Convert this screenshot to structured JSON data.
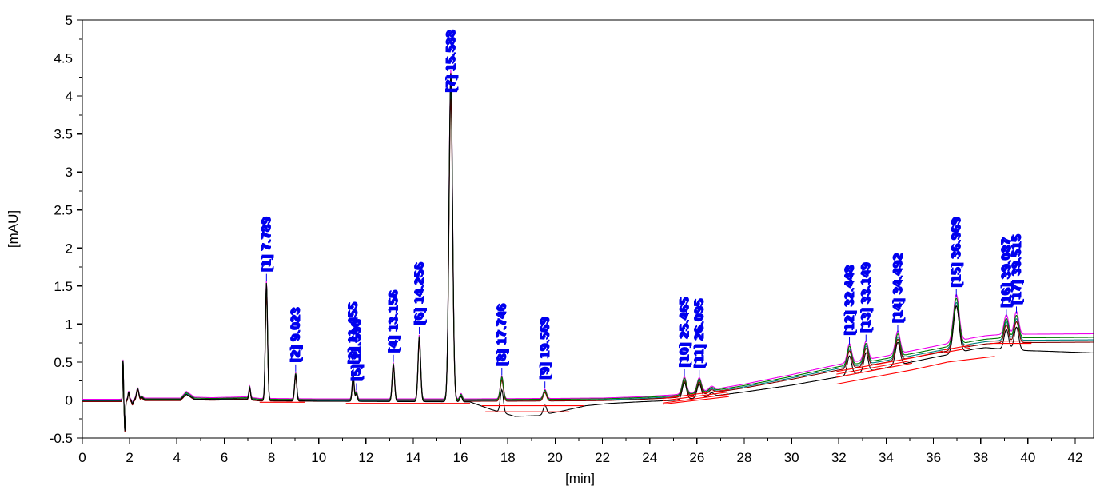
{
  "page": {
    "background": "#ffffff"
  },
  "chart_data": {
    "type": "line",
    "title": "",
    "xlabel": "[min]",
    "ylabel": "[mAU]",
    "x_range": [
      0,
      42.78
    ],
    "y_range": [
      -0.5,
      5.0
    ],
    "grid": false,
    "legend": null,
    "x_tick_labels": [
      "0",
      "2",
      "4",
      "6",
      "8",
      "10",
      "12",
      "14",
      "16",
      "18",
      "20",
      "22",
      "24",
      "26",
      "28",
      "30",
      "32",
      "34",
      "36",
      "38",
      "40",
      "42"
    ],
    "x_minor_tick_step": 1,
    "y_tick_labels": [
      "-0.5",
      "0",
      "0.5",
      "1",
      "1.5",
      "2",
      "2.5",
      "3",
      "3.5",
      "4",
      "4.5",
      "5"
    ],
    "y_minor_tick_step": 0.25,
    "annotation_color": "#0000ee",
    "border_color": "#000000",
    "peak_annotations": [
      {
        "id": "[1]",
        "rt": "7.789"
      },
      {
        "id": "[2]",
        "rt": "9.023"
      },
      {
        "id": "[3]",
        "rt": "11.455"
      },
      {
        "id": "[5]",
        "rt": "11.596"
      },
      {
        "id": "[4]",
        "rt": "13.156"
      },
      {
        "id": "[6]",
        "rt": "14.256"
      },
      {
        "id": "[7]",
        "rt": "15.588"
      },
      {
        "id": "[8]",
        "rt": "17.746"
      },
      {
        "id": "[9]",
        "rt": "19.569"
      },
      {
        "id": "[10]",
        "rt": "25.465"
      },
      {
        "id": "[11]",
        "rt": "26.095"
      },
      {
        "id": "[12]",
        "rt": "32.448"
      },
      {
        "id": "[13]",
        "rt": "33.149"
      },
      {
        "id": "[14]",
        "rt": "34.492"
      },
      {
        "id": "[15]",
        "rt": "36.969"
      },
      {
        "id": "[16]",
        "rt": "39.087"
      },
      {
        "id": "[17]",
        "rt": "39.515"
      }
    ],
    "peaks": [
      [
        7.08,
        0.15,
        0.035
      ],
      [
        7.789,
        1.55,
        0.045
      ],
      [
        9.023,
        0.35,
        0.045
      ],
      [
        11.455,
        0.33,
        0.042
      ],
      [
        11.596,
        0.1,
        0.04
      ],
      [
        13.156,
        0.48,
        0.05
      ],
      [
        14.256,
        0.85,
        0.055
      ],
      [
        15.588,
        4.33,
        0.075
      ],
      [
        16.02,
        0.07,
        0.05
      ],
      [
        17.746,
        0.3,
        0.065
      ],
      [
        19.569,
        0.12,
        0.07
      ],
      [
        25.465,
        0.22,
        0.09
      ],
      [
        26.095,
        0.185,
        0.09
      ],
      [
        26.62,
        0.045,
        0.1
      ],
      [
        32.448,
        0.25,
        0.09
      ],
      [
        33.149,
        0.25,
        0.09
      ],
      [
        34.492,
        0.3,
        0.1
      ],
      [
        36.969,
        0.62,
        0.12
      ],
      [
        39.087,
        0.26,
        0.095
      ],
      [
        39.515,
        0.3,
        0.095
      ]
    ],
    "disturbance": [
      [
        1.72,
        0.52,
        0.018
      ],
      [
        1.8,
        -0.4,
        0.022
      ],
      [
        1.96,
        0.1,
        0.03
      ],
      [
        2.12,
        -0.05,
        0.03
      ],
      [
        2.34,
        0.14,
        0.05
      ],
      [
        2.52,
        0.03,
        0.05
      ]
    ],
    "baselines": {
      "colored": [
        [
          0,
          0
        ],
        [
          1.55,
          0
        ],
        [
          2.7,
          0.015
        ],
        [
          4.15,
          0.015
        ],
        [
          4.4,
          0.1
        ],
        [
          4.75,
          0.025
        ],
        [
          5.5,
          0.02
        ],
        [
          6.9,
          0.03
        ],
        [
          7.5,
          0.01
        ],
        [
          10,
          0.005
        ],
        [
          16.5,
          0.005
        ],
        [
          20,
          0.01
        ],
        [
          22,
          0.015
        ],
        [
          23.5,
          0.03
        ],
        [
          25,
          0.055
        ],
        [
          26,
          0.09
        ],
        [
          27,
          0.14
        ],
        [
          28,
          0.19
        ],
        [
          29,
          0.25
        ],
        [
          30,
          0.31
        ],
        [
          31,
          0.375
        ],
        [
          32,
          0.44
        ],
        [
          33,
          0.49
        ],
        [
          34,
          0.545
        ],
        [
          35,
          0.605
        ],
        [
          36,
          0.665
        ],
        [
          36.8,
          0.715
        ],
        [
          37.6,
          0.77
        ],
        [
          38.2,
          0.8
        ],
        [
          38.8,
          0.815
        ],
        [
          40,
          0.82
        ],
        [
          42.8,
          0.825
        ]
      ],
      "black": [
        [
          0,
          0
        ],
        [
          1.55,
          0
        ],
        [
          2.7,
          0.01
        ],
        [
          4.15,
          0.01
        ],
        [
          4.4,
          0.08
        ],
        [
          4.75,
          0.015
        ],
        [
          6.9,
          0.02
        ],
        [
          7.5,
          0
        ],
        [
          10,
          -0.01
        ],
        [
          16.4,
          -0.02
        ],
        [
          17.3,
          -0.12
        ],
        [
          18.3,
          -0.21
        ],
        [
          19.3,
          -0.2
        ],
        [
          20.3,
          -0.14
        ],
        [
          21.3,
          -0.07
        ],
        [
          22.3,
          -0.04
        ],
        [
          23.5,
          -0.02
        ],
        [
          25,
          0.0
        ],
        [
          26,
          0.03
        ],
        [
          27,
          0.07
        ],
        [
          28,
          0.11
        ],
        [
          30,
          0.2
        ],
        [
          32,
          0.31
        ],
        [
          34,
          0.43
        ],
        [
          35,
          0.5
        ],
        [
          36,
          0.565
        ],
        [
          37,
          0.625
        ],
        [
          37.7,
          0.675
        ],
        [
          38.2,
          0.695
        ],
        [
          39,
          0.675
        ],
        [
          40,
          0.655
        ],
        [
          41,
          0.645
        ],
        [
          42.8,
          0.625
        ]
      ]
    },
    "traces": [
      {
        "name": "signal-magenta",
        "color": "#ee00ee",
        "baseline": "colored",
        "base_scale": 1.045,
        "dy": 0.01,
        "peak_scale": 1.0
      },
      {
        "name": "signal-teal",
        "color": "#008080",
        "baseline": "colored",
        "base_scale": 0.975,
        "dy": -0.012,
        "peak_scale": 0.95
      },
      {
        "name": "signal-maroon",
        "color": "#800000",
        "baseline": "colored",
        "base_scale": 0.95,
        "dy": -0.022,
        "peak_scale": 0.92
      },
      {
        "name": "signal-green",
        "color": "#007700",
        "baseline": "colored",
        "base_scale": 1.0,
        "dy": 0.0,
        "peak_scale": 0.99
      },
      {
        "name": "signal-black",
        "color": "#000000",
        "baseline": "black",
        "base_scale": 1.0,
        "dy": -0.005,
        "peak_scale": 1.0
      }
    ],
    "integration_baselines": {
      "color": "#ff0000",
      "segments": [
        [
          [
            7.5,
            -0.03
          ],
          [
            9.4,
            -0.03
          ]
        ],
        [
          [
            11.15,
            -0.045
          ],
          [
            16.4,
            -0.045
          ]
        ],
        [
          [
            16.9,
            -0.075
          ],
          [
            21.2,
            -0.075
          ]
        ],
        [
          [
            17.05,
            -0.155
          ],
          [
            20.6,
            -0.155
          ]
        ],
        [
          [
            24.55,
            0.02
          ],
          [
            27.35,
            0.135
          ]
        ],
        [
          [
            24.55,
            -0.01
          ],
          [
            27.35,
            0.105
          ]
        ],
        [
          [
            24.55,
            -0.04
          ],
          [
            27.35,
            0.075
          ]
        ],
        [
          [
            24.55,
            -0.055
          ],
          [
            27.35,
            0.045
          ]
        ],
        [
          [
            31.9,
            0.375
          ],
          [
            35.1,
            0.555
          ]
        ],
        [
          [
            31.9,
            0.34
          ],
          [
            35.1,
            0.52
          ]
        ],
        [
          [
            31.9,
            0.3
          ],
          [
            35.1,
            0.485
          ]
        ],
        [
          [
            31.9,
            0.21
          ],
          [
            35.15,
            0.4
          ]
        ],
        [
          [
            35.1,
            0.555
          ],
          [
            36.4,
            0.645
          ]
        ],
        [
          [
            35.15,
            0.4
          ],
          [
            36.6,
            0.5
          ]
        ],
        [
          [
            36.6,
            0.5
          ],
          [
            38.6,
            0.575
          ]
        ],
        [
          [
            36.45,
            0.66
          ],
          [
            37.55,
            0.72
          ]
        ],
        [
          [
            36.45,
            0.625
          ],
          [
            37.55,
            0.685
          ]
        ],
        [
          [
            38.4,
            0.775
          ],
          [
            40.15,
            0.775
          ]
        ],
        [
          [
            38.4,
            0.745
          ],
          [
            40.15,
            0.745
          ]
        ]
      ]
    }
  }
}
